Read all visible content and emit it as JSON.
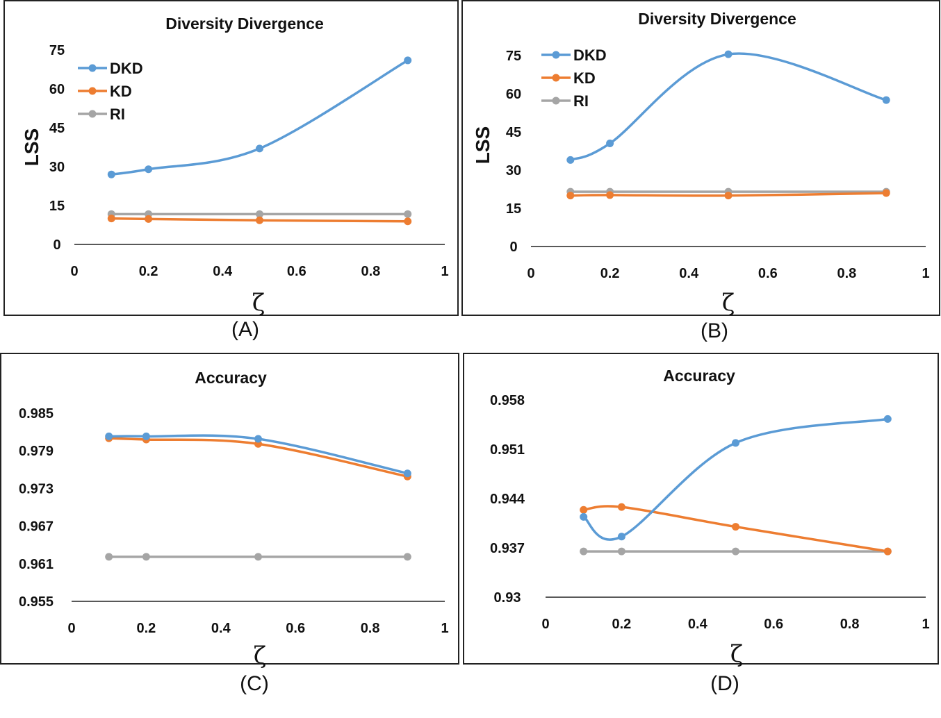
{
  "colors": {
    "DKD": "#5B9BD5",
    "KD": "#ED7D31",
    "RI": "#A5A5A5"
  },
  "captions": [
    "(A)",
    "(B)",
    "(C)",
    "(D)"
  ],
  "chart_data": [
    {
      "type": "line",
      "title": "Diversity Divergence",
      "xlabel": "ζ",
      "ylabel": "LSS",
      "x_ticks": [
        "0",
        "0.2",
        "0.4",
        "0.6",
        "0.8",
        "1"
      ],
      "y_ticks": [
        "0",
        "15",
        "30",
        "45",
        "60",
        "75"
      ],
      "xlim": [
        0,
        1
      ],
      "ylim": [
        0,
        75
      ],
      "legend": "top-left",
      "x": [
        0.1,
        0.2,
        0.5,
        0.9
      ],
      "series": [
        {
          "name": "DKD",
          "values": [
            27,
            29,
            37,
            71
          ]
        },
        {
          "name": "KD",
          "values": [
            10,
            9.8,
            9.3,
            8.9
          ]
        },
        {
          "name": "RI",
          "values": [
            11.7,
            11.7,
            11.7,
            11.7
          ]
        }
      ]
    },
    {
      "type": "line",
      "title": "Diversity Divergence",
      "xlabel": "ζ",
      "ylabel": "LSS",
      "x_ticks": [
        "0",
        "0.2",
        "0.4",
        "0.6",
        "0.8",
        "1"
      ],
      "y_ticks": [
        "0",
        "15",
        "30",
        "45",
        "60",
        "75"
      ],
      "xlim": [
        0,
        1
      ],
      "ylim": [
        0,
        75
      ],
      "legend": "top-left",
      "x": [
        0.1,
        0.2,
        0.5,
        0.9
      ],
      "series": [
        {
          "name": "DKD",
          "values": [
            34,
            40.5,
            75.5,
            57.5
          ]
        },
        {
          "name": "KD",
          "values": [
            20,
            20.2,
            20,
            21
          ]
        },
        {
          "name": "RI",
          "values": [
            21.5,
            21.5,
            21.5,
            21.5
          ]
        }
      ]
    },
    {
      "type": "line",
      "title": "Accuracy",
      "xlabel": "ζ",
      "ylabel": "",
      "x_ticks": [
        "0",
        "0.2",
        "0.4",
        "0.6",
        "0.8",
        "1"
      ],
      "y_ticks": [
        "0.955",
        "0.961",
        "0.967",
        "0.973",
        "0.979",
        "0.985"
      ],
      "xlim": [
        0,
        1
      ],
      "ylim": [
        0.955,
        0.985
      ],
      "x": [
        0.1,
        0.2,
        0.5,
        0.9
      ],
      "series": [
        {
          "name": "DKD",
          "values": [
            0.9813,
            0.9813,
            0.9809,
            0.9754
          ]
        },
        {
          "name": "KD",
          "values": [
            0.981,
            0.9808,
            0.9801,
            0.9749
          ]
        },
        {
          "name": "RI",
          "values": [
            0.9621,
            0.9621,
            0.9621,
            0.9621
          ]
        }
      ]
    },
    {
      "type": "line",
      "title": "Accuracy",
      "xlabel": "ζ",
      "ylabel": "",
      "x_ticks": [
        "0",
        "0.2",
        "0.4",
        "0.6",
        "0.8",
        "1"
      ],
      "y_ticks": [
        "0.93",
        "0.937",
        "0.944",
        "0.951",
        "0.958"
      ],
      "xlim": [
        0,
        1
      ],
      "ylim": [
        0.93,
        0.958
      ],
      "x": [
        0.1,
        0.2,
        0.5,
        0.9
      ],
      "series": [
        {
          "name": "DKD",
          "values": [
            0.9414,
            0.9386,
            0.9519,
            0.9553
          ]
        },
        {
          "name": "KD",
          "values": [
            0.9424,
            0.9428,
            0.94,
            0.9365
          ]
        },
        {
          "name": "RI",
          "values": [
            0.9365,
            0.9365,
            0.9365,
            0.9365
          ]
        }
      ]
    }
  ]
}
